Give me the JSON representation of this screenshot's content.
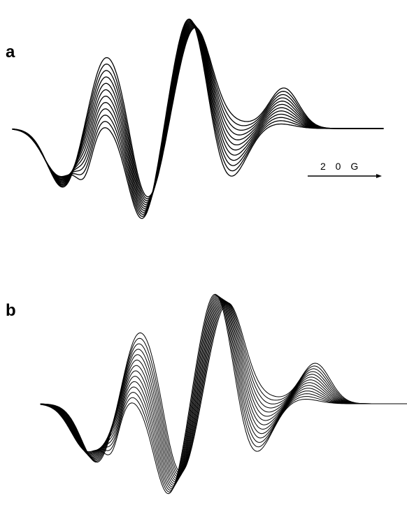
{
  "chart_data": [
    {
      "panel": "a",
      "type": "line",
      "title": "",
      "xlabel": "",
      "ylabel": "",
      "grid": false,
      "legend": "none",
      "scale_bar": {
        "label": "2 0 G",
        "value_gauss": 20
      },
      "series_count": 12
    },
    {
      "panel": "b",
      "type": "line",
      "title": "",
      "xlabel": "",
      "ylabel": "",
      "grid": false,
      "legend": "none",
      "series_count": 14
    }
  ],
  "colors": {
    "trace": "#000000",
    "background": "#ffffff"
  }
}
